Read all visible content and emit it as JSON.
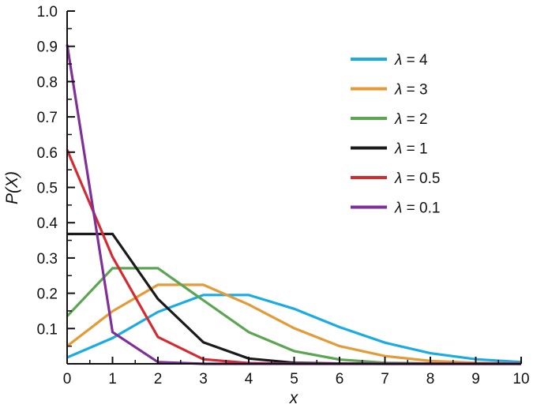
{
  "chart_data": {
    "type": "line",
    "xlabel": "x",
    "ylabel": "P(X)",
    "xlim": [
      0,
      10
    ],
    "ylim": [
      0,
      1.0
    ],
    "x": [
      0,
      1,
      2,
      3,
      4,
      5,
      6,
      7,
      8,
      9,
      10
    ],
    "xticks": [
      "0",
      "1",
      "2",
      "3",
      "4",
      "5",
      "6",
      "7",
      "8",
      "9",
      "10"
    ],
    "yticks": [
      {
        "value": 0.1,
        "label": "0.1"
      },
      {
        "value": 0.2,
        "label": "0.2"
      },
      {
        "value": 0.3,
        "label": "0.3"
      },
      {
        "value": 0.4,
        "label": "0.4"
      },
      {
        "value": 0.5,
        "label": "0.5"
      },
      {
        "value": 0.6,
        "label": "0.6"
      },
      {
        "value": 0.7,
        "label": "0.7"
      },
      {
        "value": 0.8,
        "label": "0.8"
      },
      {
        "value": 0.9,
        "label": "0.9"
      },
      {
        "value": 1.0,
        "label": "1.0"
      }
    ],
    "grid": false,
    "legend_position": "top-right",
    "series": [
      {
        "name": "λ = 4",
        "symbol": "λ",
        "value_text": " = 4",
        "color": "#1AABE4",
        "values": [
          0.018,
          0.073,
          0.147,
          0.195,
          0.195,
          0.156,
          0.104,
          0.06,
          0.03,
          0.013,
          0.005
        ]
      },
      {
        "name": "λ = 3",
        "symbol": "λ",
        "value_text": " = 3",
        "color": "#E39A37",
        "values": [
          0.05,
          0.149,
          0.224,
          0.224,
          0.168,
          0.101,
          0.05,
          0.022,
          0.008,
          0.003,
          0.001
        ]
      },
      {
        "name": "λ = 2",
        "symbol": "λ",
        "value_text": " = 2",
        "color": "#5BA553",
        "values": [
          0.135,
          0.271,
          0.271,
          0.18,
          0.09,
          0.036,
          0.012,
          0.003,
          0.001,
          0.0,
          0.0
        ]
      },
      {
        "name": "λ = 1",
        "symbol": "λ",
        "value_text": " = 1",
        "color": "#1A1A1A",
        "values": [
          0.368,
          0.368,
          0.184,
          0.061,
          0.015,
          0.003,
          0.001,
          0.0,
          0.0,
          0.0,
          0.0
        ]
      },
      {
        "name": "λ = 0.5",
        "symbol": "λ",
        "value_text": " = 0.5",
        "color": "#D42B30",
        "values": [
          0.607,
          0.303,
          0.076,
          0.013,
          0.002,
          0.0,
          0.0,
          0.0,
          0.0,
          0.0,
          0.0
        ]
      },
      {
        "name": "λ = 0.1",
        "symbol": "λ",
        "value_text": " = 0.1",
        "color": "#7E2F98",
        "values": [
          0.905,
          0.09,
          0.005,
          0.0,
          0.0,
          0.0,
          0.0,
          0.0,
          0.0,
          0.0,
          0.0
        ]
      }
    ]
  }
}
